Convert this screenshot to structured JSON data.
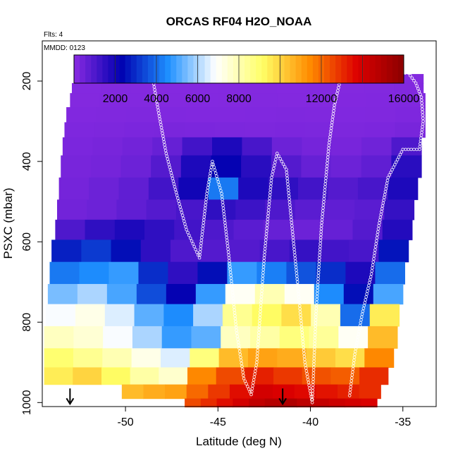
{
  "chart_data": {
    "type": "heatmap",
    "title": "ORCAS RF04 H2O_NOAA",
    "annotations": [
      "Flts: 4",
      "MMDD: 0123"
    ],
    "xlabel": "Latitude (deg N)",
    "ylabel": "PSXC (mbar)",
    "xlim": [
      -54.5,
      -33.2
    ],
    "ylim": [
      1010,
      100
    ],
    "x_ticks": [
      -50,
      -45,
      -40,
      -35
    ],
    "y_ticks": [
      200,
      400,
      600,
      800,
      1000
    ],
    "colorbar": {
      "range": [
        0,
        16000
      ],
      "tick_values": [
        2000,
        4000,
        6000,
        8000,
        12000,
        16000
      ],
      "colors": [
        "#8a2be2",
        "#0000b0",
        "#1e90ff",
        "#ffffff",
        "#ffff66",
        "#ff8c00",
        "#dd0000",
        "#8b0000"
      ]
    },
    "layers": [
      {
        "p": 195,
        "x0": -52.7,
        "x1": -33.9,
        "values": [
          100,
          120,
          110,
          100,
          90,
          100,
          120,
          100,
          90,
          100,
          110,
          120
        ]
      },
      {
        "p": 215,
        "x0": -52.9,
        "x1": -33.9,
        "values": [
          110,
          130,
          120,
          100,
          100,
          110,
          120,
          100,
          110,
          120,
          130,
          150
        ]
      },
      {
        "p": 245,
        "x0": -53.0,
        "x1": -33.8,
        "values": [
          120,
          140,
          130,
          120,
          110,
          120,
          130,
          120,
          120,
          140,
          150,
          160
        ]
      },
      {
        "p": 285,
        "x0": -53.2,
        "x1": -33.8,
        "values": [
          150,
          170,
          180,
          160,
          150,
          150,
          160,
          180,
          170,
          160,
          170,
          200
        ]
      },
      {
        "p": 320,
        "x0": -53.3,
        "x1": -33.8,
        "values": [
          200,
          220,
          250,
          260,
          250,
          230,
          220,
          240,
          230,
          220,
          240,
          300
        ]
      },
      {
        "p": 360,
        "x0": -53.4,
        "x1": -34.0,
        "values": [
          250,
          300,
          400,
          600,
          1200,
          1800,
          1100,
          500,
          350,
          300,
          450,
          1000
        ]
      },
      {
        "p": 410,
        "x0": -53.5,
        "x1": -34.0,
        "values": [
          300,
          350,
          500,
          900,
          1800,
          2200,
          1600,
          900,
          600,
          500,
          700,
          1600
        ]
      },
      {
        "p": 470,
        "x0": -53.6,
        "x1": -34.2,
        "values": [
          350,
          500,
          700,
          1200,
          2000,
          4200,
          1800,
          1500,
          1200,
          900,
          1100,
          1800
        ]
      },
      {
        "p": 520,
        "x0": -53.7,
        "x1": -34.4,
        "values": [
          400,
          500,
          700,
          900,
          1100,
          1500,
          1300,
          1000,
          800,
          700,
          800,
          1400
        ]
      },
      {
        "p": 570,
        "x0": -53.8,
        "x1": -34.5,
        "values": [
          1000,
          1500,
          1800,
          1500,
          1200,
          1000,
          800,
          600,
          500,
          600,
          900,
          1700
        ]
      },
      {
        "p": 620,
        "x0": -54.0,
        "x1": -34.7,
        "values": [
          2800,
          3200,
          2500,
          1500,
          1000,
          900,
          900,
          1100,
          1400,
          1200,
          1100,
          2600
        ]
      },
      {
        "p": 680,
        "x0": -54.1,
        "x1": -34.9,
        "values": [
          4200,
          4500,
          4800,
          3000,
          1500,
          2500,
          4800,
          4300,
          3600,
          3000,
          1800,
          4000
        ]
      },
      {
        "p": 730,
        "x0": -54.2,
        "x1": -35.0,
        "values": [
          5500,
          6000,
          5000,
          3500,
          2200,
          4800,
          7000,
          8000,
          7000,
          4500,
          2500,
          5000
        ]
      },
      {
        "p": 780,
        "x0": -54.3,
        "x1": -35.2,
        "values": [
          6800,
          7200,
          6500,
          5200,
          4500,
          6000,
          8500,
          9200,
          9800,
          8000,
          4000,
          9500
        ]
      },
      {
        "p": 840,
        "x0": -54.4,
        "x1": -35.3,
        "values": [
          7800,
          7500,
          6800,
          6000,
          4800,
          5200,
          7800,
          8200,
          8800,
          8400,
          7000,
          10500
        ]
      },
      {
        "p": 890,
        "x0": -54.4,
        "x1": -35.5,
        "values": [
          9000,
          8500,
          8000,
          7200,
          6500,
          8800,
          10500,
          11000,
          10800,
          10200,
          9800,
          11500
        ]
      },
      {
        "p": 935,
        "x0": -54.4,
        "x1": -35.8,
        "values": [
          9500,
          10000,
          9200,
          8200,
          7600,
          11500,
          12500,
          13200,
          12800,
          12400,
          12200,
          13000
        ]
      },
      {
        "p": 975,
        "x0": -50.2,
        "x1": -36.2,
        "values": [
          10500,
          10800,
          11000,
          12000,
          12800,
          13500,
          14000,
          13800,
          13600,
          13400,
          13200,
          13000
        ]
      },
      {
        "p": 1005,
        "x0": -46.8,
        "x1": -36.4,
        "values": [
          12500,
          13000,
          13500,
          14000,
          14500,
          14800,
          15000,
          14600,
          14400,
          14200,
          14000,
          13800
        ]
      }
    ],
    "flight_track": [
      {
        "x": -52.7,
        "p": 195
      },
      {
        "x": -52.3,
        "p": 180
      },
      {
        "x": -51.5,
        "p": 180
      },
      {
        "x": -50.0,
        "p": 180
      },
      {
        "x": -49.0,
        "p": 180
      },
      {
        "x": -48.5,
        "p": 200
      },
      {
        "x": -48.2,
        "p": 280
      },
      {
        "x": -47.8,
        "p": 380
      },
      {
        "x": -47.3,
        "p": 470
      },
      {
        "x": -46.7,
        "p": 570
      },
      {
        "x": -46.0,
        "p": 640
      },
      {
        "x": -45.6,
        "p": 480
      },
      {
        "x": -45.3,
        "p": 400
      },
      {
        "x": -44.8,
        "p": 480
      },
      {
        "x": -44.4,
        "p": 640
      },
      {
        "x": -44.0,
        "p": 820
      },
      {
        "x": -43.6,
        "p": 940
      },
      {
        "x": -43.2,
        "p": 980
      },
      {
        "x": -42.9,
        "p": 900
      },
      {
        "x": -42.5,
        "p": 640
      },
      {
        "x": -42.1,
        "p": 440
      },
      {
        "x": -41.8,
        "p": 380
      },
      {
        "x": -41.3,
        "p": 420
      },
      {
        "x": -41.0,
        "p": 560
      },
      {
        "x": -40.7,
        "p": 700
      },
      {
        "x": -40.3,
        "p": 900
      },
      {
        "x": -39.9,
        "p": 1000
      },
      {
        "x": -39.7,
        "p": 780
      },
      {
        "x": -39.4,
        "p": 560
      },
      {
        "x": -39.0,
        "p": 360
      },
      {
        "x": -38.7,
        "p": 260
      },
      {
        "x": -38.3,
        "p": 180
      },
      {
        "x": -37.5,
        "p": 180
      },
      {
        "x": -36.5,
        "p": 180
      },
      {
        "x": -35.4,
        "p": 180
      },
      {
        "x": -34.7,
        "p": 180
      },
      {
        "x": -34.3,
        "p": 205
      },
      {
        "x": -34.0,
        "p": 240
      },
      {
        "x": -33.9,
        "p": 300
      },
      {
        "x": -34.1,
        "p": 370
      },
      {
        "x": -35.0,
        "p": 370
      },
      {
        "x": -35.8,
        "p": 440
      },
      {
        "x": -36.3,
        "p": 560
      },
      {
        "x": -36.7,
        "p": 680
      },
      {
        "x": -37.2,
        "p": 780
      },
      {
        "x": -37.6,
        "p": 880
      },
      {
        "x": -37.9,
        "p": 990
      }
    ],
    "markers": [
      {
        "x": -53.0,
        "p": 1000
      },
      {
        "x": -41.5,
        "p": 1000
      }
    ]
  }
}
